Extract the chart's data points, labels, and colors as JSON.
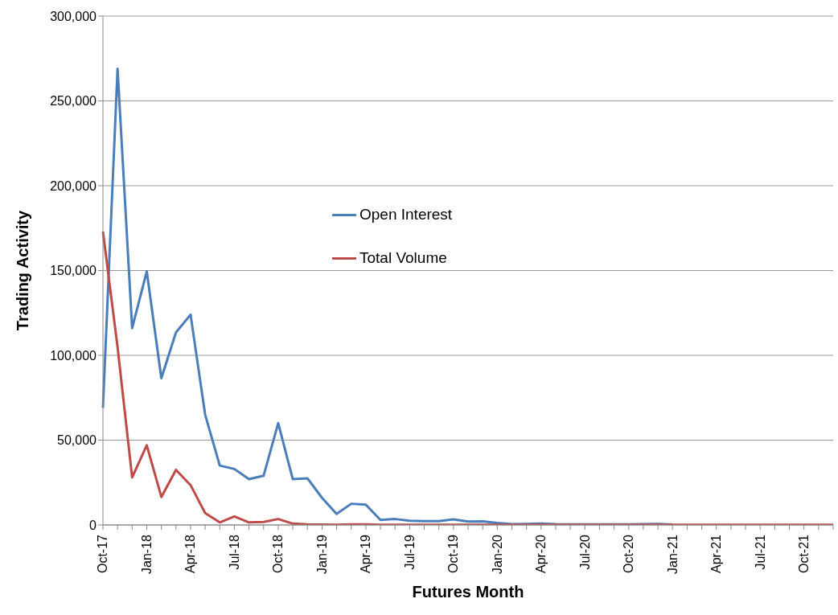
{
  "chart_data": {
    "type": "line",
    "xlabel": "Futures Month",
    "ylabel": "Trading Activity",
    "categories": [
      "Oct-17",
      null,
      null,
      "Jan-18",
      null,
      null,
      "Apr-18",
      null,
      null,
      "Jul-18",
      null,
      null,
      "Oct-18",
      null,
      null,
      "Jan-19",
      null,
      null,
      "Apr-19",
      null,
      null,
      "Jul-19",
      null,
      null,
      "Oct-19",
      null,
      null,
      "Jan-20",
      null,
      null,
      "Apr-20",
      null,
      null,
      "Jul-20",
      null,
      null,
      "Oct-20",
      null,
      null,
      "Jan-21",
      null,
      null,
      "Apr-21",
      null,
      null,
      "Jul-21",
      null,
      null,
      "Oct-21",
      null,
      null
    ],
    "series": [
      {
        "name": "Open Interest",
        "color": "#4a7ebb",
        "values": [
          69000,
          269000,
          116000,
          149500,
          86500,
          113500,
          124000,
          65000,
          35000,
          33000,
          27000,
          29000,
          60000,
          27000,
          27500,
          16000,
          6500,
          12500,
          12000,
          3000,
          3500,
          2500,
          2200,
          2300,
          3300,
          2000,
          2100,
          1200,
          500,
          600,
          800,
          500,
          400,
          400,
          300,
          300,
          400,
          500,
          600,
          200,
          null,
          null,
          null,
          null,
          null,
          null,
          null,
          null,
          null,
          null,
          null
        ]
      },
      {
        "name": "Total Volume",
        "color": "#be4b48",
        "values": [
          173000,
          105000,
          28000,
          47000,
          16500,
          32500,
          23500,
          7000,
          1500,
          5000,
          1500,
          1800,
          3500,
          800,
          300,
          200,
          100,
          300,
          300,
          100,
          100,
          100,
          100,
          100,
          100,
          100,
          100,
          100,
          100,
          100,
          100,
          100,
          100,
          100,
          100,
          100,
          100,
          100,
          100,
          100,
          100,
          100,
          100,
          100,
          100,
          100,
          100,
          100,
          100,
          100,
          100
        ]
      }
    ],
    "ylim": [
      0,
      300000
    ],
    "yticks": [
      0,
      {
        "value": 50000,
        "label": "50,000"
      },
      {
        "value": 100000,
        "label": "100,000"
      },
      {
        "value": 150000,
        "label": "150,000"
      },
      {
        "value": 200000,
        "label": "200,000"
      },
      {
        "value": 250000,
        "label": "250,000"
      },
      {
        "value": 300000,
        "label": "300,000"
      }
    ],
    "grid": "y",
    "legend": "top",
    "marker": "none",
    "line_style": "solid"
  }
}
